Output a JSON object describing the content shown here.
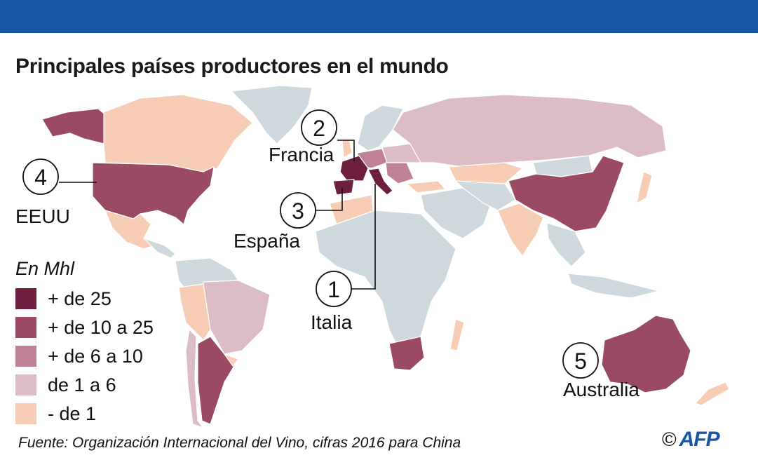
{
  "title": "Principales países productores en el mundo",
  "legend": {
    "title": "En Mhl",
    "items": [
      {
        "label": "+ de 25",
        "color": "#6e1f3f"
      },
      {
        "label": "+ de 10 a 25",
        "color": "#9b4a64"
      },
      {
        "label": "+ de 6 a 10",
        "color": "#bf8195"
      },
      {
        "label": "de 1 a 6",
        "color": "#dcbcc5"
      },
      {
        "label": "- de 1",
        "color": "#f8cdb6"
      }
    ]
  },
  "producers": [
    {
      "rank": "1",
      "country": "Italia"
    },
    {
      "rank": "2",
      "country": "Francia"
    },
    {
      "rank": "3",
      "country": "España"
    },
    {
      "rank": "4",
      "country": "EEUU"
    },
    {
      "rank": "5",
      "country": "Australia"
    }
  ],
  "colors": {
    "no_data": "#cfd9de",
    "header": "#1a56a6"
  },
  "source": "Fuente: Organización Internacional del Vino, cifras 2016 para China",
  "credit": {
    "copyright": "©",
    "agency": "AFP"
  }
}
